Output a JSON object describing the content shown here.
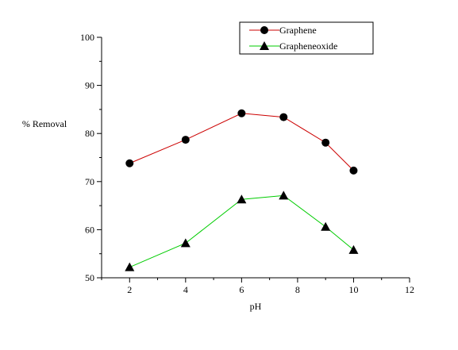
{
  "chart_data": {
    "type": "line",
    "title": "",
    "xlabel": "pH",
    "ylabel": "% Removal",
    "xlim": [
      1,
      12
    ],
    "ylim": [
      50,
      100
    ],
    "xticks": [
      2,
      4,
      6,
      8,
      10,
      12
    ],
    "yticks": [
      50,
      60,
      70,
      80,
      90,
      100
    ],
    "grid": false,
    "legend_position": "top-right",
    "series": [
      {
        "name": "Graphene",
        "marker": "circle",
        "color": "#cc0000",
        "x": [
          2,
          4,
          6,
          7.5,
          9,
          10
        ],
        "y": [
          73.8,
          78.7,
          84.2,
          83.4,
          78.1,
          72.3
        ]
      },
      {
        "name": "Grapheneoxide",
        "marker": "triangle",
        "color": "#00cc00",
        "x": [
          2,
          4,
          6,
          7.5,
          9,
          10
        ],
        "y": [
          52.2,
          57.2,
          66.3,
          67.1,
          60.6,
          55.8
        ]
      }
    ]
  }
}
